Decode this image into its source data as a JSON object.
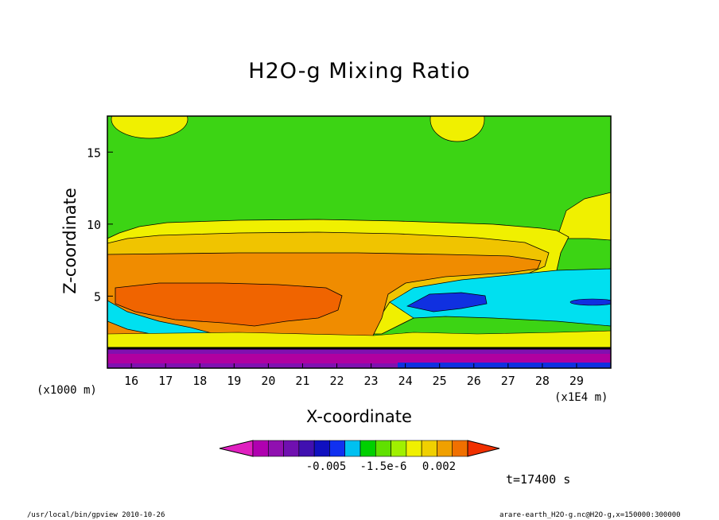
{
  "chart_data": {
    "type": "heatmap",
    "title": "H2O-g Mixing Ratio",
    "xlabel": "X-coordinate",
    "ylabel": "Z-coordinate",
    "x_unit_left": "(x1000 m)",
    "x_unit_right": "(x1E4 m)",
    "xlim": [
      15.3,
      30.0
    ],
    "ylim": [
      0.0,
      17.5
    ],
    "x_ticks": [
      16,
      17,
      18,
      19,
      20,
      21,
      22,
      23,
      24,
      25,
      26,
      27,
      28,
      29
    ],
    "y_ticks": [
      5,
      10,
      15
    ],
    "colorbar": {
      "labels": [
        "-0.005",
        "-1.5e-6",
        "0.002"
      ],
      "colors": [
        "#e020c0",
        "#b000b0",
        "#9010b0",
        "#7010b0",
        "#4010b0",
        "#1010c0",
        "#1030f0",
        "#00c0f0",
        "#00d000",
        "#60e000",
        "#a0f000",
        "#f0f000",
        "#f0d000",
        "#f0a000",
        "#f07000",
        "#f03000"
      ]
    },
    "regions": [
      {
        "level": "green",
        "color": "#3cd414"
      },
      {
        "level": "yellow",
        "color": "#f0f000"
      },
      {
        "level": "light-orange",
        "color": "#f0b400"
      },
      {
        "level": "orange",
        "color": "#f08c00"
      },
      {
        "level": "dark-orange",
        "color": "#f06400"
      },
      {
        "level": "cyan",
        "color": "#00e0f0"
      },
      {
        "level": "blue",
        "color": "#1030e0"
      },
      {
        "level": "purple",
        "color": "#8010b0"
      },
      {
        "level": "magenta",
        "color": "#b000a0"
      }
    ],
    "annotation_time": "t=17400 s"
  },
  "footer": {
    "left": "/usr/local/bin/gpview  2010-10-26",
    "right": "arare-earth_H2O-g.nc@H2O-g,x=150000:300000"
  }
}
